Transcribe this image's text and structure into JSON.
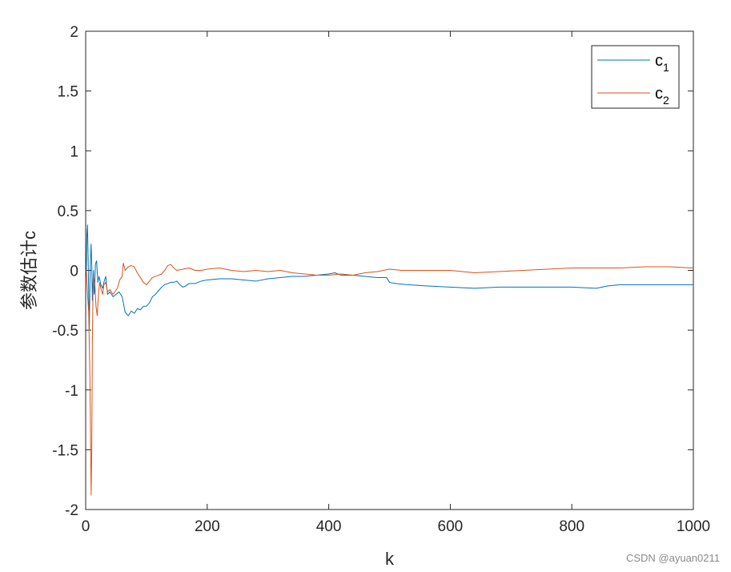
{
  "chart_data": {
    "type": "line",
    "xlabel": "k",
    "ylabel": "参数估计c",
    "xlim": [
      0,
      1000
    ],
    "ylim": [
      -2,
      2
    ],
    "xticks": [
      0,
      200,
      400,
      600,
      800,
      1000
    ],
    "yticks": [
      -2,
      -1.5,
      -1,
      -0.5,
      0,
      0.5,
      1,
      1.5,
      2
    ],
    "legend_position": "top-right",
    "grid": false,
    "series": [
      {
        "name": "c1",
        "color": "#0072BD",
        "points": [
          [
            1,
            0
          ],
          [
            2,
            0.3
          ],
          [
            3,
            0.38
          ],
          [
            4,
            0.12
          ],
          [
            5,
            -0.2
          ],
          [
            6,
            -0.5
          ],
          [
            7,
            -0.1
          ],
          [
            8,
            0.1
          ],
          [
            9,
            0.22
          ],
          [
            10,
            0.05
          ],
          [
            11,
            -0.25
          ],
          [
            12,
            -0.1
          ],
          [
            13,
            0.0
          ],
          [
            14,
            -0.2
          ],
          [
            15,
            -0.15
          ],
          [
            16,
            0.05
          ],
          [
            18,
            0.08
          ],
          [
            20,
            -0.1
          ],
          [
            22,
            -0.05
          ],
          [
            25,
            -0.12
          ],
          [
            28,
            -0.15
          ],
          [
            30,
            -0.1
          ],
          [
            33,
            -0.05
          ],
          [
            36,
            -0.2
          ],
          [
            40,
            -0.18
          ],
          [
            45,
            -0.22
          ],
          [
            50,
            -0.2
          ],
          [
            55,
            -0.18
          ],
          [
            60,
            -0.22
          ],
          [
            65,
            -0.35
          ],
          [
            70,
            -0.38
          ],
          [
            75,
            -0.34
          ],
          [
            80,
            -0.36
          ],
          [
            85,
            -0.32
          ],
          [
            90,
            -0.33
          ],
          [
            95,
            -0.3
          ],
          [
            100,
            -0.3
          ],
          [
            105,
            -0.27
          ],
          [
            110,
            -0.22
          ],
          [
            115,
            -0.2
          ],
          [
            120,
            -0.17
          ],
          [
            125,
            -0.14
          ],
          [
            130,
            -0.12
          ],
          [
            135,
            -0.11
          ],
          [
            140,
            -0.1
          ],
          [
            145,
            -0.1
          ],
          [
            150,
            -0.09
          ],
          [
            155,
            -0.12
          ],
          [
            160,
            -0.14
          ],
          [
            165,
            -0.13
          ],
          [
            170,
            -0.11
          ],
          [
            180,
            -0.11
          ],
          [
            190,
            -0.09
          ],
          [
            200,
            -0.08
          ],
          [
            220,
            -0.07
          ],
          [
            240,
            -0.07
          ],
          [
            260,
            -0.08
          ],
          [
            280,
            -0.09
          ],
          [
            300,
            -0.07
          ],
          [
            320,
            -0.06
          ],
          [
            340,
            -0.05
          ],
          [
            360,
            -0.05
          ],
          [
            380,
            -0.04
          ],
          [
            400,
            -0.03
          ],
          [
            410,
            -0.02
          ],
          [
            420,
            -0.04
          ],
          [
            440,
            -0.04
          ],
          [
            460,
            -0.05
          ],
          [
            480,
            -0.06
          ],
          [
            495,
            -0.06
          ],
          [
            500,
            -0.1
          ],
          [
            510,
            -0.11
          ],
          [
            530,
            -0.12
          ],
          [
            560,
            -0.13
          ],
          [
            600,
            -0.14
          ],
          [
            640,
            -0.15
          ],
          [
            680,
            -0.14
          ],
          [
            720,
            -0.14
          ],
          [
            760,
            -0.14
          ],
          [
            800,
            -0.14
          ],
          [
            840,
            -0.15
          ],
          [
            860,
            -0.13
          ],
          [
            880,
            -0.12
          ],
          [
            920,
            -0.12
          ],
          [
            960,
            -0.12
          ],
          [
            1000,
            -0.12
          ]
        ]
      },
      {
        "name": "c2",
        "color": "#D95319",
        "points": [
          [
            1,
            0
          ],
          [
            3,
            -0.2
          ],
          [
            5,
            -0.35
          ],
          [
            7,
            -0.9
          ],
          [
            9,
            -1.88
          ],
          [
            10,
            -1.5
          ],
          [
            11,
            -0.6
          ],
          [
            12,
            -0.2
          ],
          [
            13,
            -0.05
          ],
          [
            15,
            -0.1
          ],
          [
            17,
            -0.3
          ],
          [
            19,
            -0.38
          ],
          [
            21,
            -0.2
          ],
          [
            23,
            -0.1
          ],
          [
            25,
            -0.15
          ],
          [
            28,
            -0.2
          ],
          [
            30,
            -0.12
          ],
          [
            33,
            -0.1
          ],
          [
            36,
            -0.18
          ],
          [
            40,
            -0.16
          ],
          [
            45,
            -0.2
          ],
          [
            48,
            -0.18
          ],
          [
            52,
            -0.15
          ],
          [
            56,
            -0.08
          ],
          [
            60,
            -0.05
          ],
          [
            62,
            0.06
          ],
          [
            65,
            0.0
          ],
          [
            70,
            0.03
          ],
          [
            75,
            0.04
          ],
          [
            80,
            0.03
          ],
          [
            85,
            -0.02
          ],
          [
            90,
            -0.06
          ],
          [
            95,
            -0.1
          ],
          [
            100,
            -0.12
          ],
          [
            105,
            -0.09
          ],
          [
            110,
            -0.06
          ],
          [
            115,
            -0.05
          ],
          [
            120,
            -0.04
          ],
          [
            125,
            -0.03
          ],
          [
            130,
            0.0
          ],
          [
            135,
            0.04
          ],
          [
            140,
            0.05
          ],
          [
            145,
            0.02
          ],
          [
            150,
            0.0
          ],
          [
            160,
            0.01
          ],
          [
            170,
            0.02
          ],
          [
            180,
            0.0
          ],
          [
            190,
            0.0
          ],
          [
            200,
            0.01
          ],
          [
            220,
            0.02
          ],
          [
            240,
            0.0
          ],
          [
            260,
            -0.01
          ],
          [
            280,
            0.0
          ],
          [
            300,
            -0.01
          ],
          [
            320,
            0.0
          ],
          [
            340,
            -0.02
          ],
          [
            360,
            -0.03
          ],
          [
            380,
            -0.04
          ],
          [
            400,
            -0.04
          ],
          [
            420,
            -0.03
          ],
          [
            440,
            -0.04
          ],
          [
            460,
            -0.02
          ],
          [
            480,
            -0.01
          ],
          [
            500,
            0.01
          ],
          [
            520,
            0.0
          ],
          [
            560,
            0.0
          ],
          [
            600,
            0.0
          ],
          [
            640,
            -0.02
          ],
          [
            680,
            -0.01
          ],
          [
            720,
            0.0
          ],
          [
            760,
            0.01
          ],
          [
            800,
            0.02
          ],
          [
            840,
            0.02
          ],
          [
            880,
            0.02
          ],
          [
            920,
            0.03
          ],
          [
            960,
            0.03
          ],
          [
            1000,
            0.02
          ]
        ]
      }
    ]
  },
  "legend": {
    "series1_base": "c",
    "series1_sub": "1",
    "series2_base": "c",
    "series2_sub": "2"
  },
  "watermark": "CSDN @ayuan0211"
}
